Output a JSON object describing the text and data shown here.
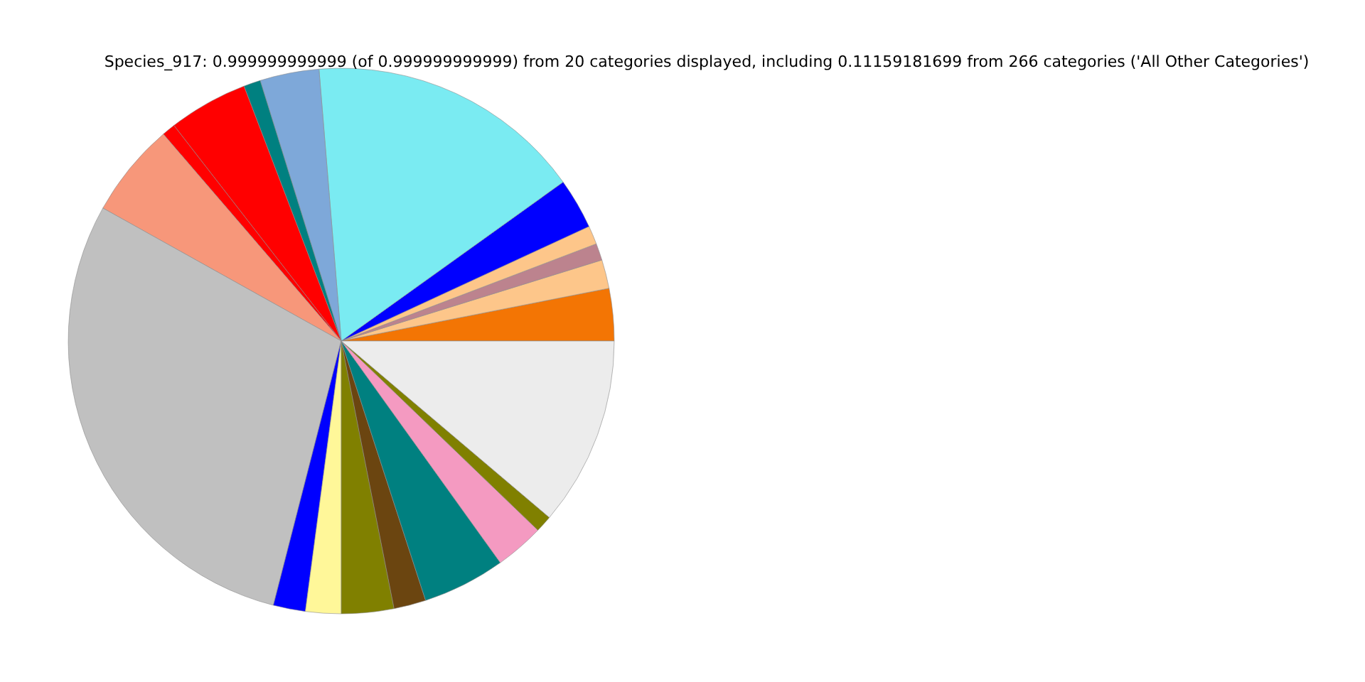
{
  "chart_data": {
    "type": "pie",
    "title": "Species_917: 0.999999999999 (of 0.999999999999) from 20 categories displayed, including 0.11159181699 from 266 categories ('All Other Categories')",
    "categories": [
      null,
      null,
      null,
      null,
      null,
      null,
      null,
      null,
      null,
      null,
      null,
      null,
      null,
      null,
      null,
      null,
      null,
      null,
      null,
      null
    ],
    "values": [
      3.1,
      1.7,
      1.0,
      1.1,
      3.0,
      16.4,
      3.5,
      1.0,
      4.7,
      0.8,
      5.6,
      29.1,
      1.9,
      2.1,
      3.1,
      1.9,
      4.9,
      2.9,
      1.0,
      11.2
    ],
    "colors": [
      "#f37504",
      "#fdc68a",
      "#bc838e",
      "#fdc68a",
      "#0000ff",
      "#7aebf2",
      "#7ea8d9",
      "#008080",
      "#ff0000",
      "#ff0000",
      "#f7977a",
      "#c0c0c0",
      "#0000ff",
      "#fff799",
      "#808000",
      "#6b4510",
      "#008080",
      "#f49ac1",
      "#808000",
      "#ececec"
    ]
  }
}
